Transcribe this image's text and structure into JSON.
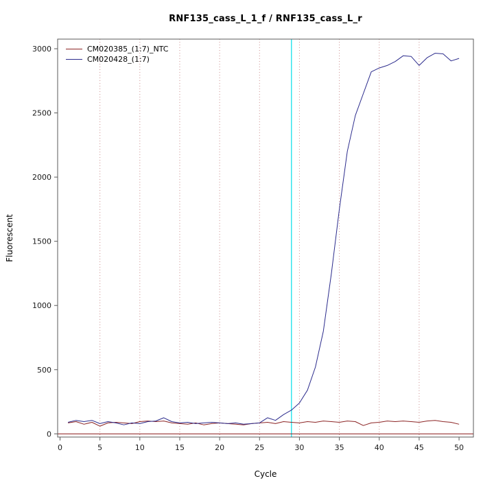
{
  "chart_data": {
    "type": "line",
    "title": "RNF135_cass_L_1_f / RNF135_cass_L_r",
    "xlabel": "Cycle",
    "ylabel": "Fluorescent",
    "xlim": [
      0,
      50
    ],
    "ylim": [
      0,
      3000
    ],
    "x_range": [
      -0.3,
      51.8
    ],
    "y_range": [
      -25,
      3075
    ],
    "xticks": [
      0,
      5,
      10,
      15,
      20,
      25,
      30,
      35,
      40,
      45,
      50
    ],
    "yticks": [
      0,
      500,
      1000,
      1500,
      2000,
      2500,
      3000
    ],
    "grid": {
      "vertical_dotted_x": [
        5,
        10,
        15,
        20,
        25,
        30,
        35,
        40,
        45
      ],
      "color": "#cc8f8f"
    },
    "threshold_cycle_vline": {
      "x": 29,
      "color": "#00dde8"
    },
    "baseline_hline": {
      "y": 0,
      "color": "#8b1a1a"
    },
    "legend_position": "top-left",
    "cycles": [
      1,
      2,
      3,
      4,
      5,
      6,
      7,
      8,
      9,
      10,
      11,
      12,
      13,
      14,
      15,
      16,
      17,
      18,
      19,
      20,
      21,
      22,
      23,
      24,
      25,
      26,
      27,
      28,
      29,
      30,
      31,
      32,
      33,
      34,
      35,
      36,
      37,
      38,
      39,
      40,
      41,
      42,
      43,
      44,
      45,
      46,
      47,
      48,
      49,
      50
    ],
    "series": [
      {
        "name": "CM020385_(1:7)_NTC",
        "color": "#8b2323",
        "values": [
          85,
          95,
          75,
          90,
          60,
          85,
          90,
          85,
          80,
          95,
          100,
          95,
          100,
          85,
          80,
          75,
          85,
          70,
          80,
          85,
          80,
          75,
          70,
          80,
          85,
          90,
          80,
          95,
          90,
          85,
          95,
          90,
          100,
          95,
          90,
          100,
          95,
          65,
          85,
          90,
          100,
          95,
          100,
          95,
          90,
          100,
          105,
          95,
          90,
          75
        ]
      },
      {
        "name": "CM020428_(1:7)",
        "color": "#2b2b8c",
        "values": [
          90,
          105,
          95,
          105,
          80,
          95,
          85,
          70,
          85,
          80,
          95,
          100,
          125,
          95,
          85,
          90,
          80,
          85,
          90,
          85,
          80,
          85,
          75,
          80,
          85,
          125,
          105,
          150,
          185,
          240,
          340,
          520,
          800,
          1250,
          1750,
          2200,
          2480,
          2650,
          2820,
          2850,
          2870,
          2900,
          2945,
          2940,
          2870,
          2930,
          2965,
          2960,
          2905,
          2925
        ]
      }
    ],
    "axis_color": "#5a5a5a",
    "tick_label_color": "#1a1a1a"
  }
}
